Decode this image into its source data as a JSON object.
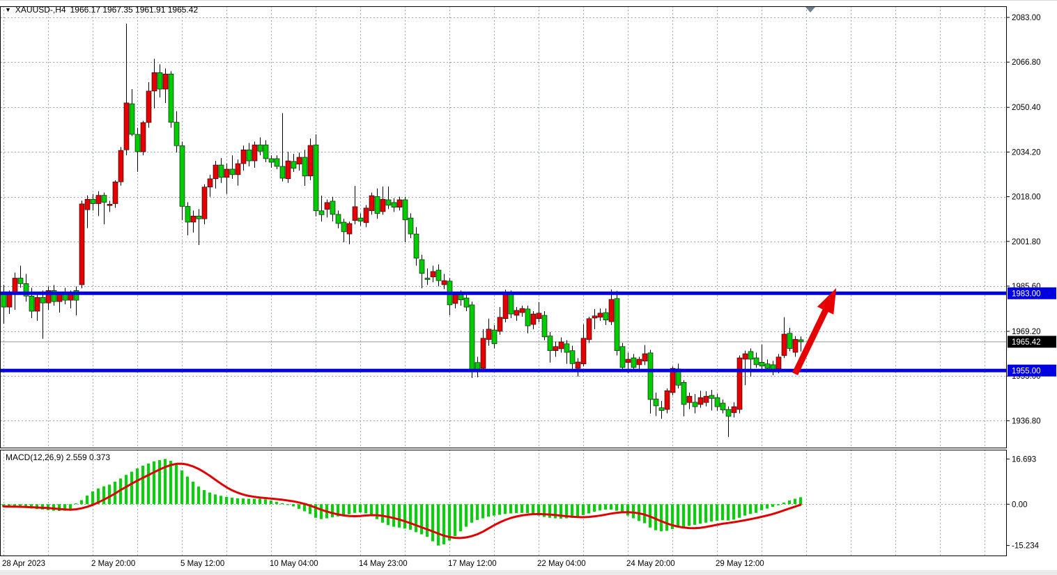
{
  "header": {
    "symbol_timeframe": "XAUUSD-,H4",
    "ohlc_readout": "1966.17 1967.35 1961.91 1965.42",
    "dropdown_icon": "▼"
  },
  "indicator": {
    "macd_label": "MACD(12,26,9) 2.559 0.373"
  },
  "colors": {
    "bull": "#e60000",
    "bear": "#00cc00",
    "wick": "#000000",
    "grid": "#9aa4b5",
    "level_blue": "#0000e0",
    "macd_bar": "#00d300",
    "macd_signal": "#e00000",
    "arrow": "#e60000",
    "current_line": "#8f9a9a",
    "current_badge_bg": "#000000",
    "badge_text": "#ffffff",
    "marker": "#708090"
  },
  "chart_data": {
    "type": "candlestick",
    "title": "XAUUSD-,H4  1966.17 1967.35 1961.91 1965.42",
    "symbol": "XAUUSD-",
    "timeframe": "H4",
    "current_bar": {
      "open": 1966.17,
      "high": 1967.35,
      "low": 1961.91,
      "close": 1965.42
    },
    "price_axis_ticks": [
      2083.0,
      2066.8,
      2050.4,
      2034.2,
      2018.0,
      2001.8,
      1985.6,
      1969.2,
      1953.0,
      1936.8
    ],
    "macd_axis_ticks": [
      "16.693",
      "0.00",
      "-15.234"
    ],
    "x_labels": [
      {
        "i": 0,
        "t": "28 Apr 2023"
      },
      {
        "i": 16,
        "t": "2 May 20:00"
      },
      {
        "i": 32,
        "t": "5 May 12:00"
      },
      {
        "i": 48,
        "t": "10 May 04:00"
      },
      {
        "i": 64,
        "t": "14 May 23:00"
      },
      {
        "i": 80,
        "t": "17 May 12:00"
      },
      {
        "i": 96,
        "t": "22 May 04:00"
      },
      {
        "i": 112,
        "t": "24 May 20:00"
      },
      {
        "i": 128,
        "t": "29 May 12:00"
      }
    ],
    "hlines": [
      {
        "price": 1983.0,
        "label": "1983.00",
        "role": "resistance"
      },
      {
        "price": 1955.0,
        "label": "1955.00",
        "role": "support"
      }
    ],
    "current_price": {
      "value": 1965.42,
      "label": "1965.42"
    },
    "arrow": {
      "from_bar": 142,
      "from_price": 1953.8,
      "to_bar": 149.4,
      "to_price": 1984.9
    },
    "macd": {
      "params": "12,26,9",
      "current_macd": 2.559,
      "current_signal": 0.373,
      "values": [
        -0.8,
        -1.0,
        -0.9,
        -1.1,
        -1.3,
        -1.6,
        -1.8,
        -2.0,
        -2.2,
        -2.4,
        -2.5,
        -2.4,
        -2.2,
        0.3,
        1.5,
        3.2,
        4.7,
        5.8,
        6.6,
        7.2,
        8.3,
        9.5,
        10.8,
        12.0,
        13.2,
        14.2,
        15.0,
        15.8,
        16.3,
        16.693,
        16.0,
        14.8,
        12.5,
        10.2,
        8.3,
        6.5,
        5.2,
        4.3,
        3.6,
        3.1,
        2.7,
        2.4,
        2.2,
        2.1,
        2.0,
        2.0,
        2.0,
        1.8,
        1.4,
        0.9,
        0.4,
        -0.3,
        -0.8,
        -1.7,
        -2.6,
        -3.6,
        -5.0,
        -5.5,
        -5.2,
        -4.8,
        -4.5,
        -4.2,
        -3.7,
        -3.2,
        -3.0,
        -3.4,
        -4.3,
        -5.5,
        -6.8,
        -7.7,
        -8.3,
        -8.6,
        -9.0,
        -9.4,
        -10.3,
        -11.1,
        -12.0,
        -13.7,
        -15.234,
        -14.8,
        -13.4,
        -11.8,
        -10.0,
        -8.3,
        -6.8,
        -5.8,
        -5.2,
        -4.6,
        -4.2,
        -3.9,
        -3.6,
        -3.4,
        -3.3,
        -3.2,
        -3.3,
        -3.6,
        -4.2,
        -4.7,
        -5.0,
        -5.2,
        -5.3,
        -5.2,
        -5.0,
        -4.6,
        -4.0,
        -3.4,
        -2.8,
        -2.3,
        -2.0,
        -2.0,
        -2.4,
        -3.2,
        -4.2,
        -5.2,
        -6.2,
        -7.0,
        -8.6,
        -9.6,
        -10.0,
        -9.8,
        -9.2,
        -8.6,
        -8.4,
        -8.0,
        -7.6,
        -7.2,
        -6.8,
        -6.4,
        -6.1,
        -5.9,
        -6.0,
        -5.7,
        -5.0,
        -4.2,
        -3.6,
        -3.2,
        -2.2,
        -1.6,
        -1.0,
        -0.4,
        0.6,
        1.4,
        2.0,
        2.559
      ]
    },
    "candles": [
      [
        1983.5,
        1986,
        1972,
        1978
      ],
      [
        1978,
        1984,
        1975.5,
        1983
      ],
      [
        1983,
        1990.5,
        1977,
        1988.5
      ],
      [
        1988.5,
        1993,
        1985,
        1986.5
      ],
      [
        1986.5,
        1990,
        1980,
        1982
      ],
      [
        1982,
        1985,
        1974,
        1976.5
      ],
      [
        1976.5,
        1983,
        1973,
        1981.5
      ],
      [
        1981.5,
        1984,
        1966.5,
        1979.5
      ],
      [
        1979.5,
        1985.5,
        1977,
        1984
      ],
      [
        1984,
        1986,
        1978.5,
        1980
      ],
      [
        1980,
        1983.5,
        1976,
        1982.5
      ],
      [
        1982.5,
        1985,
        1979,
        1980.5
      ],
      [
        1980.5,
        1984,
        1977.5,
        1983
      ],
      [
        1984,
        1985.5,
        1975,
        1980.5
      ],
      [
        1986.1,
        2016.6,
        1984.8,
        2015.4
      ],
      [
        2013.3,
        2018.5,
        2006.6,
        2017.1
      ],
      [
        2017.1,
        2019,
        2013,
        2015.5
      ],
      [
        2015.5,
        2020,
        2011,
        2018.5
      ],
      [
        2018.5,
        2019.5,
        2008,
        2016
      ],
      [
        2014.8,
        2016.5,
        2012.5,
        2015.3
      ],
      [
        2015.5,
        2024,
        2014,
        2023.4
      ],
      [
        2023.4,
        2036,
        2022,
        2034.8
      ],
      [
        2035,
        2080.7,
        2033,
        2052
      ],
      [
        2051.7,
        2057,
        2040,
        2040.6
      ],
      [
        2040.6,
        2043,
        2027,
        2034.3
      ],
      [
        2034.3,
        2045.5,
        2033,
        2044.9
      ],
      [
        2044.9,
        2059.5,
        2043,
        2056.3
      ],
      [
        2056.3,
        2068,
        2050,
        2063
      ],
      [
        2063,
        2066,
        2054,
        2057
      ],
      [
        2057,
        2064.5,
        2052,
        2062.5
      ],
      [
        2062.5,
        2063.5,
        2043,
        2045
      ],
      [
        2045,
        2049,
        2034,
        2036.5
      ],
      [
        2036.5,
        2038,
        2009.5,
        2014.5
      ],
      [
        2014.5,
        2016,
        2004,
        2008.8
      ],
      [
        2008.8,
        2013,
        2005,
        2011
      ],
      [
        2011,
        2013.5,
        2000.5,
        2010
      ],
      [
        2010,
        2022.5,
        2008,
        2021.5
      ],
      [
        2021.5,
        2026,
        2018,
        2024.5
      ],
      [
        2024.5,
        2031,
        2021,
        2029.5
      ],
      [
        2029.5,
        2032,
        2023,
        2025
      ],
      [
        2025,
        2030,
        2019,
        2028
      ],
      [
        2028,
        2033,
        2024.5,
        2026
      ],
      [
        2026,
        2031.5,
        2022,
        2030
      ],
      [
        2030,
        2036.5,
        2027.5,
        2035
      ],
      [
        2035,
        2037.5,
        2029,
        2031
      ],
      [
        2031,
        2038,
        2028.5,
        2036.8
      ],
      [
        2036.8,
        2039.5,
        2033,
        2034.5
      ],
      [
        2036.8,
        2038.5,
        2030.5,
        2031.8
      ],
      [
        2031.8,
        2033,
        2028.5,
        2030.5
      ],
      [
        2031.8,
        2033,
        2028,
        2029
      ],
      [
        2029,
        2048.3,
        2023.5,
        2024.7
      ],
      [
        2024.5,
        2034.3,
        2023,
        2031
      ],
      [
        2030.8,
        2033.5,
        2027,
        2028.3
      ],
      [
        2029.8,
        2034,
        2027.5,
        2032.3
      ],
      [
        2032.3,
        2035,
        2021.9,
        2025.5
      ],
      [
        2025.5,
        2039.1,
        2024,
        2036.6
      ],
      [
        2036.8,
        2040.6,
        2010.9,
        2012.9
      ],
      [
        2012.9,
        2018.4,
        2009,
        2011.5
      ],
      [
        2013.4,
        2017,
        2010.5,
        2015.9
      ],
      [
        2016.4,
        2018,
        2009.1,
        2011.6
      ],
      [
        2011.6,
        2013,
        2006.5,
        2008.3
      ],
      [
        2008.8,
        2010,
        2001.5,
        2005.3
      ],
      [
        2004.5,
        2009,
        2000.8,
        2008.3
      ],
      [
        2009.4,
        2021.9,
        2008,
        2014.4
      ],
      [
        2010.3,
        2012,
        2007.5,
        2009.1
      ],
      [
        2008.6,
        2015,
        2007,
        2013.9
      ],
      [
        2012.9,
        2019.5,
        2011.5,
        2018.4
      ],
      [
        2018.1,
        2021,
        2010,
        2011.9
      ],
      [
        2012.6,
        2021.7,
        2011.5,
        2017.1
      ],
      [
        2016.9,
        2021.7,
        2013.5,
        2014.9
      ],
      [
        2015.9,
        2017.5,
        2012.5,
        2014.2
      ],
      [
        2014.2,
        2018,
        2013,
        2016.9
      ],
      [
        2016.9,
        2018,
        2001.5,
        2009.6
      ],
      [
        2010.3,
        2012,
        2003,
        2004.5
      ],
      [
        2004.5,
        2007,
        1993,
        1995.7
      ],
      [
        1995.2,
        1997,
        1984.8,
        1990.2
      ],
      [
        1988.5,
        1992,
        1986,
        1988
      ],
      [
        1988.9,
        1993,
        1987,
        1990.9
      ],
      [
        1991.4,
        1993.5,
        1985.5,
        1987.6
      ],
      [
        1986.1,
        1990,
        1984.5,
        1987.6
      ],
      [
        1987.4,
        1988.5,
        1975,
        1978.8
      ],
      [
        1979.3,
        1983.5,
        1977.5,
        1982.4
      ],
      [
        1982.4,
        1984,
        1978.5,
        1980.6
      ],
      [
        1981.3,
        1982.5,
        1976.5,
        1978
      ],
      [
        1978.8,
        1980,
        1952.3,
        1955.3
      ],
      [
        1957.9,
        1960,
        1952.5,
        1955.3
      ],
      [
        1955.8,
        1970,
        1954.5,
        1966.7
      ],
      [
        1966.2,
        1973.8,
        1964,
        1970
      ],
      [
        1969.7,
        1971.5,
        1963,
        1964.7
      ],
      [
        1969.2,
        1978,
        1968,
        1974.3
      ],
      [
        1973.8,
        1984.3,
        1972.5,
        1983.1
      ],
      [
        1982.6,
        1984,
        1974,
        1975.5
      ],
      [
        1975,
        1978,
        1973,
        1976.8
      ],
      [
        1976,
        1978.5,
        1974.5,
        1977.5
      ],
      [
        1977.3,
        1978.5,
        1968.5,
        1971.2
      ],
      [
        1971.7,
        1976.5,
        1970,
        1975.5
      ],
      [
        1973.8,
        1979.8,
        1972.5,
        1975.8
      ],
      [
        1975,
        1976.5,
        1966,
        1967.2
      ],
      [
        1967.5,
        1969,
        1957.9,
        1962.2
      ],
      [
        1962.2,
        1965.5,
        1960,
        1963.7
      ],
      [
        1962.9,
        1967,
        1961.5,
        1965.4
      ],
      [
        1964.7,
        1966,
        1957.4,
        1961.6
      ],
      [
        1962.2,
        1964,
        1955.3,
        1957.5
      ],
      [
        1955.8,
        1959.5,
        1952.8,
        1958.1
      ],
      [
        1957.4,
        1971.7,
        1956.5,
        1966.7
      ],
      [
        1966.2,
        1974.5,
        1965,
        1973.8
      ],
      [
        1974,
        1977.3,
        1970,
        1974.8
      ],
      [
        1974.3,
        1977.5,
        1973,
        1975.8
      ],
      [
        1976,
        1977.5,
        1971.5,
        1973.3
      ],
      [
        1972.7,
        1984.4,
        1971.5,
        1980.8
      ],
      [
        1981.1,
        1983.9,
        1960.5,
        1962.2
      ],
      [
        1963.7,
        1965,
        1954.5,
        1956.1
      ],
      [
        1957.9,
        1961.5,
        1954,
        1959.1
      ],
      [
        1959.6,
        1961,
        1954.8,
        1956.1
      ],
      [
        1957.1,
        1960,
        1955,
        1959.1
      ],
      [
        1958.4,
        1964.2,
        1957,
        1961.1
      ],
      [
        1961.4,
        1962.5,
        1939.4,
        1944.5
      ],
      [
        1944.7,
        1947,
        1938.5,
        1942.2
      ],
      [
        1941.5,
        1944,
        1937.5,
        1940.5
      ],
      [
        1940.9,
        1948.5,
        1939.5,
        1947.7
      ],
      [
        1947,
        1956.5,
        1946,
        1955.8
      ],
      [
        1955.6,
        1957.5,
        1948.5,
        1949.7
      ],
      [
        1950.7,
        1951.5,
        1938.4,
        1942.7
      ],
      [
        1943.4,
        1947,
        1941,
        1945.7
      ],
      [
        1943.5,
        1946.5,
        1939.5,
        1941.9
      ],
      [
        1942.7,
        1947.7,
        1941.5,
        1945.2
      ],
      [
        1943.4,
        1947.5,
        1942,
        1945.7
      ],
      [
        1946,
        1948,
        1940.5,
        1944.9
      ],
      [
        1945.2,
        1946.5,
        1940.5,
        1941.9
      ],
      [
        1943.2,
        1944.5,
        1939.5,
        1940.7
      ],
      [
        1940.9,
        1942,
        1930.9,
        1938.4
      ],
      [
        1939.7,
        1943.5,
        1938,
        1941.9
      ],
      [
        1940.9,
        1960.5,
        1939.5,
        1959.6
      ],
      [
        1959.1,
        1962.2,
        1949.7,
        1961.1
      ],
      [
        1961.9,
        1963,
        1952.8,
        1959.1
      ],
      [
        1959.6,
        1961.5,
        1956,
        1957.1
      ],
      [
        1958,
        1964.4,
        1955.5,
        1956.6
      ],
      [
        1957.4,
        1959,
        1954.5,
        1955.8
      ],
      [
        1957.1,
        1958.5,
        1953.3,
        1954.8
      ],
      [
        1955.6,
        1961,
        1954,
        1959.9
      ],
      [
        1960.4,
        1974.3,
        1959.5,
        1968.2
      ],
      [
        1968.5,
        1970.5,
        1962,
        1963
      ],
      [
        1961.6,
        1967.5,
        1960,
        1966.3
      ],
      [
        1966.17,
        1967.35,
        1961.91,
        1965.42
      ]
    ]
  }
}
